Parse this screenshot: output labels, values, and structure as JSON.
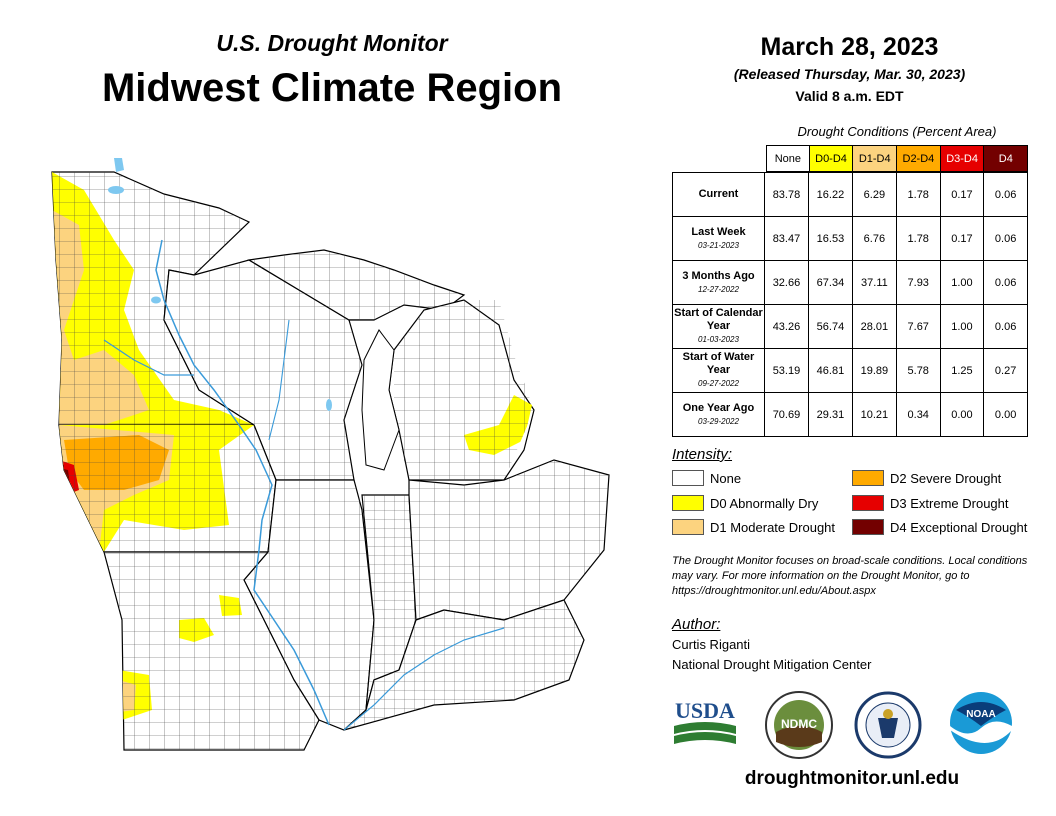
{
  "header": {
    "title_small": "U.S. Drought Monitor",
    "title_large": "Midwest Climate Region"
  },
  "info": {
    "date": "March 28, 2023",
    "released": "(Released Thursday, Mar. 30, 2023)",
    "valid": "Valid 8 a.m. EDT"
  },
  "table": {
    "caption": "Drought Conditions (Percent Area)",
    "columns": [
      {
        "label": "None",
        "bg": "#ffffff",
        "fg": "#000000"
      },
      {
        "label": "D0-D4",
        "bg": "#ffff00",
        "fg": "#000000"
      },
      {
        "label": "D1-D4",
        "bg": "#fcd37f",
        "fg": "#000000"
      },
      {
        "label": "D2-D4",
        "bg": "#ffaa00",
        "fg": "#000000"
      },
      {
        "label": "D3-D4",
        "bg": "#e60000",
        "fg": "#ffffff"
      },
      {
        "label": "D4",
        "bg": "#730000",
        "fg": "#ffffff"
      }
    ],
    "rows": [
      {
        "label": "Current",
        "sub": "",
        "values": [
          "83.78",
          "16.22",
          "6.29",
          "1.78",
          "0.17",
          "0.06"
        ]
      },
      {
        "label": "Last Week",
        "sub": "03-21-2023",
        "values": [
          "83.47",
          "16.53",
          "6.76",
          "1.78",
          "0.17",
          "0.06"
        ]
      },
      {
        "label": "3 Months Ago",
        "sub": "12-27-2022",
        "values": [
          "32.66",
          "67.34",
          "37.11",
          "7.93",
          "1.00",
          "0.06"
        ]
      },
      {
        "label": "Start of Calendar Year",
        "sub": "01-03-2023",
        "values": [
          "43.26",
          "56.74",
          "28.01",
          "7.67",
          "1.00",
          "0.06"
        ]
      },
      {
        "label": "Start of Water Year",
        "sub": "09-27-2022",
        "values": [
          "53.19",
          "46.81",
          "19.89",
          "5.78",
          "1.25",
          "0.27"
        ]
      },
      {
        "label": "One Year Ago",
        "sub": "03-29-2022",
        "values": [
          "70.69",
          "29.31",
          "10.21",
          "0.34",
          "0.00",
          "0.00"
        ]
      }
    ]
  },
  "legend": {
    "title": "Intensity:",
    "items": [
      {
        "label": "None",
        "color": "#ffffff"
      },
      {
        "label": "D0 Abnormally Dry",
        "color": "#ffff00"
      },
      {
        "label": "D1 Moderate Drought",
        "color": "#fcd37f"
      },
      {
        "label": "D2 Severe Drought",
        "color": "#ffaa00"
      },
      {
        "label": "D3 Extreme Drought",
        "color": "#e60000"
      },
      {
        "label": "D4 Exceptional Drought",
        "color": "#730000"
      }
    ]
  },
  "note": "The Drought Monitor focuses on broad-scale conditions. Local conditions may vary. For more information on the Drought Monitor, go to https://droughtmonitor.unl.edu/About.aspx",
  "author": {
    "title": "Author:",
    "name": "Curtis Riganti",
    "org": "National Drought Mitigation Center"
  },
  "logos": {
    "usda": "USDA",
    "ndmc": "NDMC",
    "noaa": "NOAA"
  },
  "url": "droughtmonitor.unl.edu",
  "map_colors": {
    "water": "#7ec8f0",
    "land": "#ffffff",
    "border": "#000000"
  }
}
